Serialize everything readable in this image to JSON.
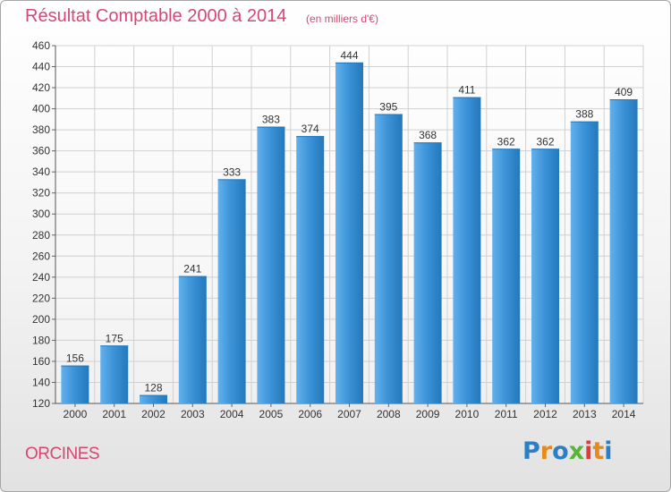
{
  "header": {
    "title": "Résultat Comptable 2000 à 2014",
    "subtitle": "(en milliers d'€)"
  },
  "footer": {
    "commune": "ORCINES",
    "logo_letters": [
      "P",
      "r",
      "o",
      "x",
      "i",
      "t",
      "i"
    ],
    "logo_colors": [
      "#2c7fc6",
      "#e58a1c",
      "#2c7fc6",
      "#5bb43a",
      "#e03a3a",
      "#e58a1c",
      "#2c7fc6"
    ]
  },
  "colors": {
    "bar": "#3d94d8",
    "bar_light": "#63b1ec",
    "bar_dark": "#2478bc",
    "title": "#d44873",
    "grid": "#d0d0d0",
    "text": "#333333"
  },
  "chart_data": {
    "type": "bar",
    "title": "Résultat Comptable 2000 à 2014",
    "subtitle": "(en milliers d'€)",
    "xlabel": "",
    "ylabel": "",
    "categories": [
      "2000",
      "2001",
      "2002",
      "2003",
      "2004",
      "2005",
      "2006",
      "2007",
      "2008",
      "2009",
      "2010",
      "2011",
      "2012",
      "2013",
      "2014"
    ],
    "values": [
      156,
      175,
      128,
      241,
      333,
      383,
      374,
      444,
      395,
      368,
      411,
      362,
      362,
      388,
      409
    ],
    "ylim": [
      120,
      460
    ],
    "yticks": [
      120,
      140,
      160,
      180,
      200,
      220,
      240,
      260,
      280,
      300,
      320,
      340,
      360,
      380,
      400,
      420,
      440,
      460
    ],
    "grid": true
  }
}
